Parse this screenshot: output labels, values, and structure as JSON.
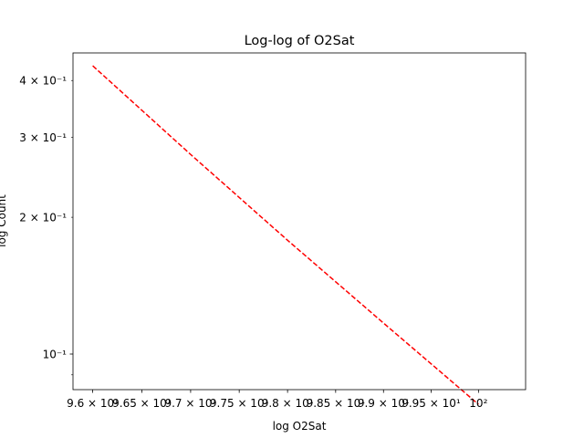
{
  "chart_data": {
    "type": "line",
    "title": "Log-log of O2Sat",
    "xlabel": "log O2Sat",
    "ylabel": "log Count",
    "xscale": "log",
    "yscale": "log",
    "xlim": [
      95.8,
      100.5
    ],
    "ylim": [
      0.0835,
      0.46
    ],
    "grid": false,
    "series": [
      {
        "color": "#ff0000",
        "linestyle": "dashed",
        "x": [
          96,
          97,
          98,
          99,
          100
        ],
        "y": [
          0.431,
          0.275,
          0.178,
          0.117,
          0.0775
        ]
      }
    ],
    "xticks": [
      {
        "value": 96,
        "label": "9.6 × 10¹"
      },
      {
        "value": 96.5,
        "label": "9.65 × 10¹"
      },
      {
        "value": 97,
        "label": "9.7 × 10¹"
      },
      {
        "value": 97.5,
        "label": "9.75 × 10¹"
      },
      {
        "value": 98,
        "label": "9.8 × 10¹"
      },
      {
        "value": 98.5,
        "label": "9.85 × 10¹"
      },
      {
        "value": 99,
        "label": "9.9 × 10¹"
      },
      {
        "value": 99.5,
        "label": "9.95 × 10¹"
      },
      {
        "value": 100,
        "label": "10²"
      }
    ],
    "yticks_major": [
      {
        "value": 0.1,
        "label": "10⁻¹"
      }
    ],
    "yticks_minor_labeled": [
      {
        "value": 0.2,
        "label": "2 × 10⁻¹"
      },
      {
        "value": 0.3,
        "label": "3 × 10⁻¹"
      },
      {
        "value": 0.4,
        "label": "4 × 10⁻¹"
      }
    ],
    "yticks_minor_unlabeled": [
      0.09
    ]
  }
}
